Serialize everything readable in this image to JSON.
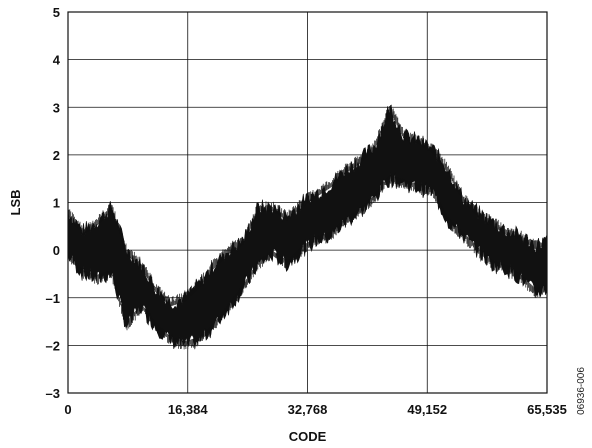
{
  "chart_data": {
    "type": "area",
    "title": "",
    "xlabel": "CODE",
    "ylabel": "LSB",
    "xlim": [
      0,
      65535
    ],
    "ylim": [
      -3,
      5
    ],
    "x_ticks": [
      0,
      16384,
      32768,
      49152,
      65535
    ],
    "x_tick_labels": [
      "0",
      "16,384",
      "32,768",
      "49,152",
      "65,535"
    ],
    "y_ticks": [
      -3,
      -2,
      -1,
      0,
      1,
      2,
      3,
      4,
      5
    ],
    "y_tick_labels": [
      "–3",
      "–2",
      "–1",
      "0",
      "1",
      "2",
      "3",
      "4",
      "5"
    ],
    "grid": true,
    "legend": "none",
    "fill_color": "#111111",
    "series": [
      {
        "x": [
          0,
          2000,
          4000,
          6000,
          8000,
          10000,
          12000,
          14000,
          16000,
          18000,
          20000,
          22000,
          24000,
          26000,
          28000,
          30000,
          32000,
          34000,
          36000,
          38000,
          40000,
          42000,
          44000,
          46000,
          48000,
          50000,
          52000,
          54000,
          56000,
          58000,
          60000,
          62000,
          64000,
          65535
        ],
        "lower": [
          -0.1,
          -0.5,
          -0.6,
          -0.5,
          -1.6,
          -1.2,
          -1.6,
          -1.9,
          -2.0,
          -1.9,
          -1.6,
          -1.2,
          -0.8,
          -0.3,
          -0.1,
          -0.3,
          0.0,
          0.2,
          0.3,
          0.6,
          0.8,
          1.1,
          1.5,
          1.4,
          1.3,
          1.2,
          0.6,
          0.3,
          0.0,
          -0.3,
          -0.4,
          -0.6,
          -0.9,
          -0.8
        ],
        "upper": [
          0.8,
          0.4,
          0.6,
          0.9,
          0.0,
          -0.3,
          -0.8,
          -1.1,
          -1.0,
          -0.7,
          -0.3,
          0.0,
          0.2,
          0.9,
          0.9,
          0.7,
          1.0,
          1.2,
          1.4,
          1.7,
          1.9,
          2.2,
          3.0,
          2.4,
          2.3,
          2.1,
          1.7,
          1.1,
          0.8,
          0.6,
          0.4,
          0.3,
          0.1,
          0.2
        ]
      }
    ]
  },
  "figure_id": "06936-006"
}
